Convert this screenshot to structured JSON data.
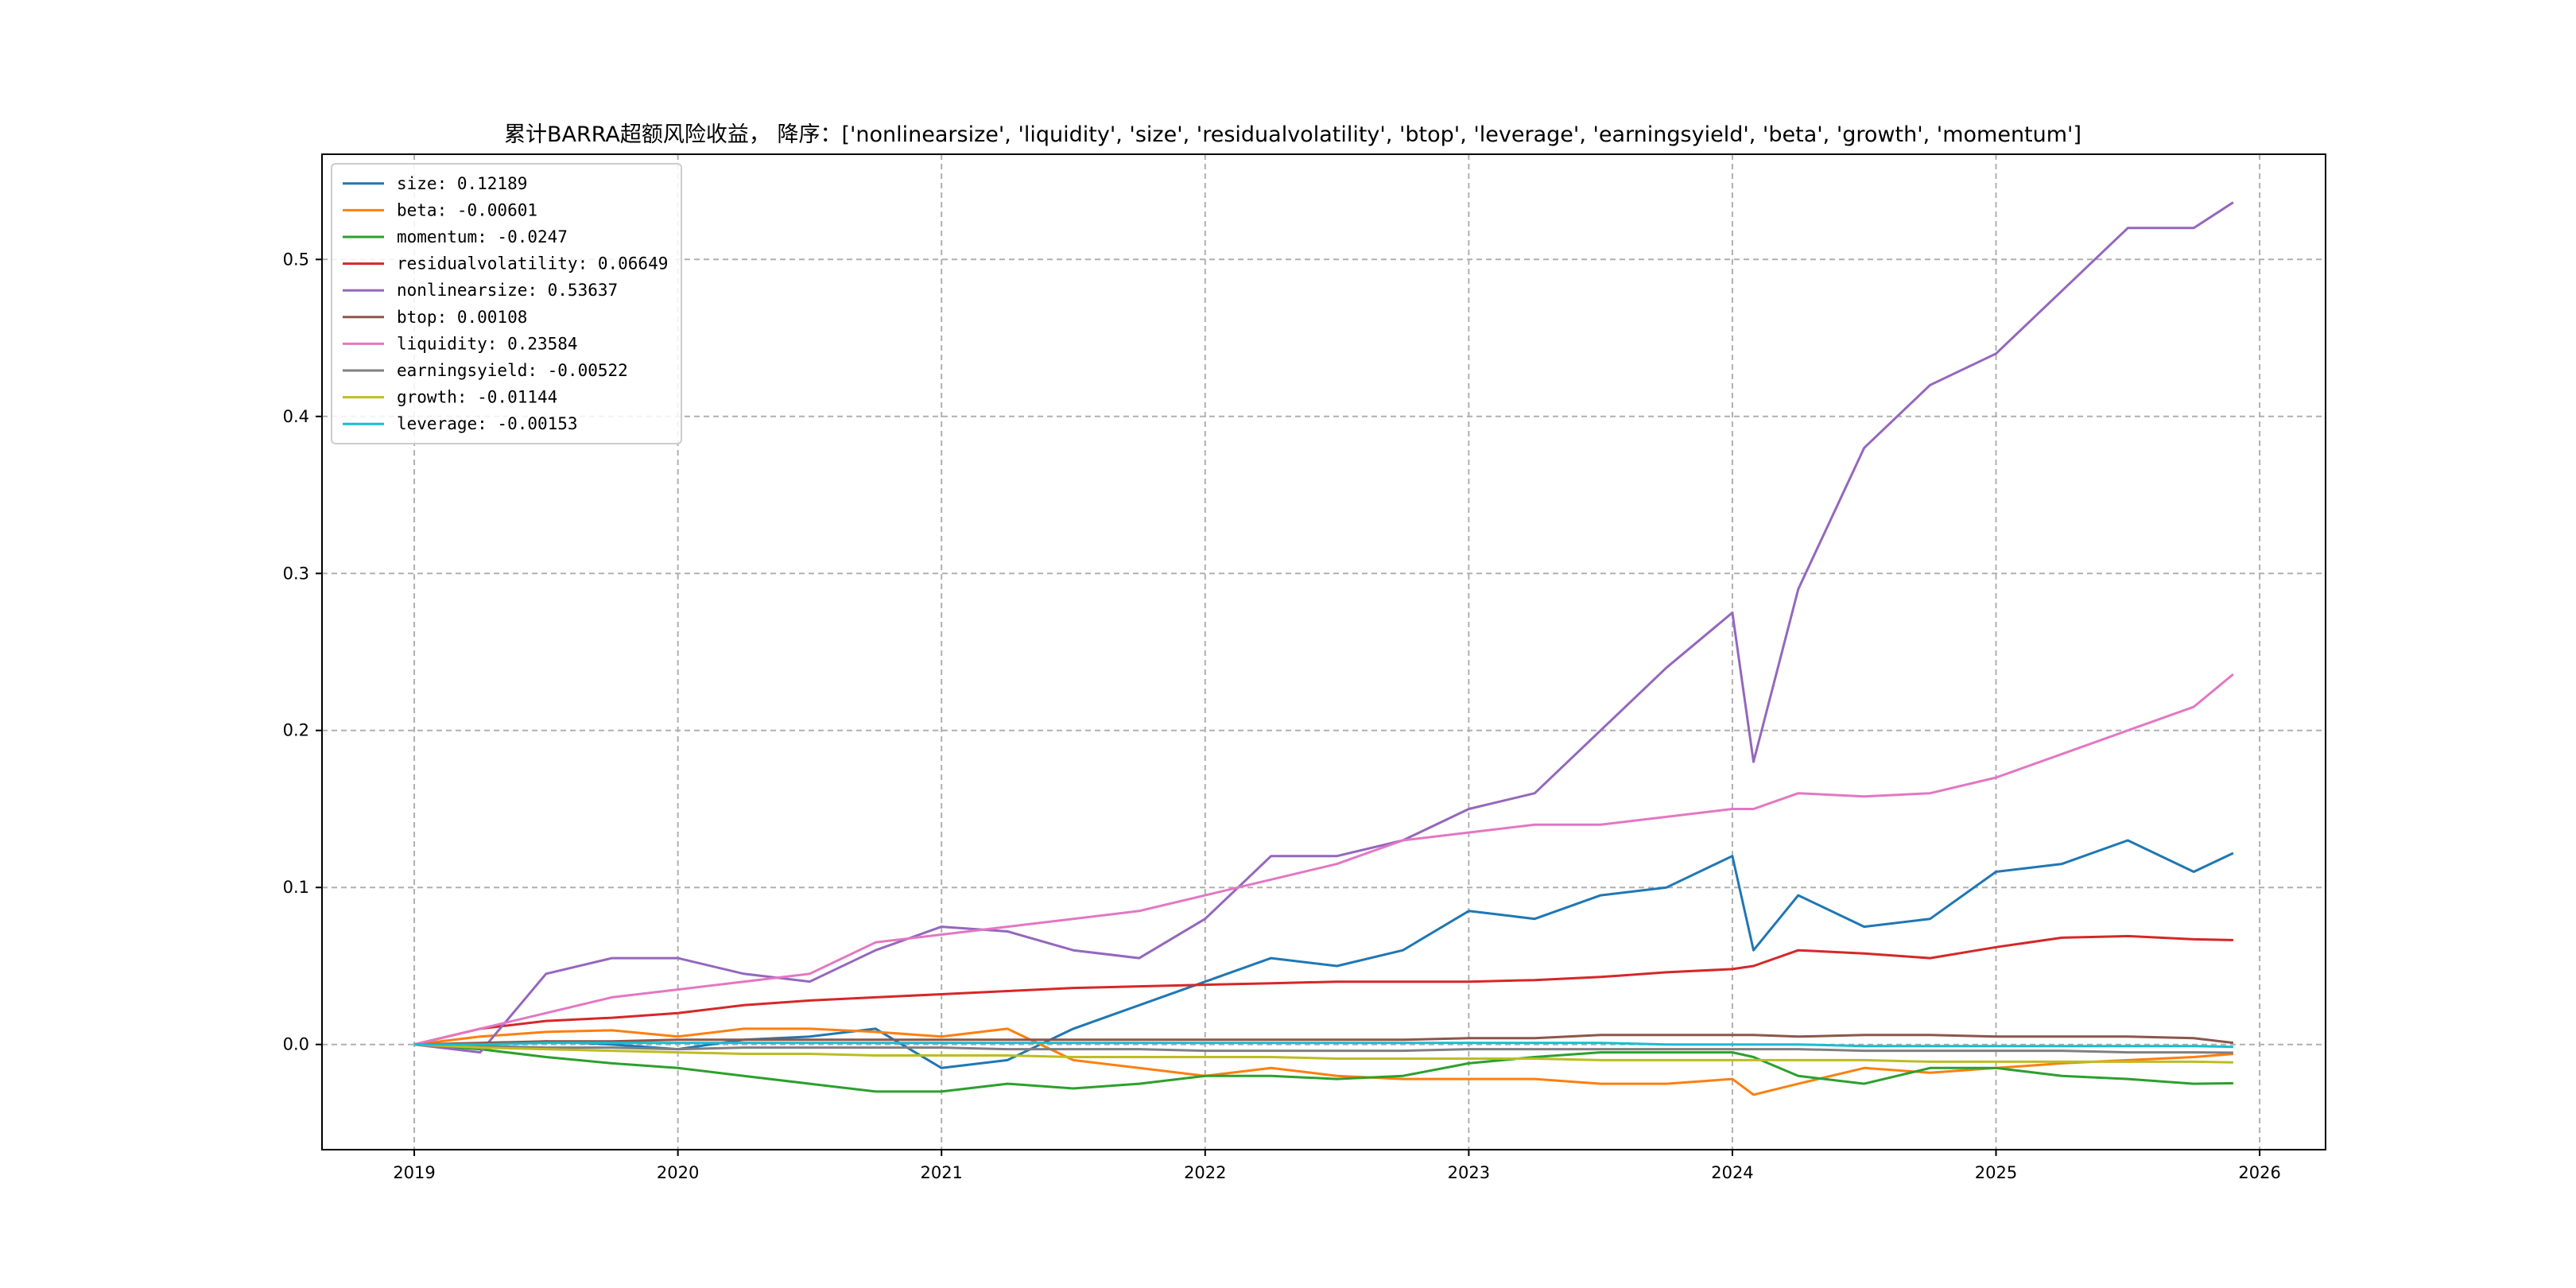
{
  "chart_data": {
    "type": "line",
    "title": "累计BARRA超额风险收益， 降序：['nonlinearsize', 'liquidity', 'size', 'residualvolatility', 'btop', 'leverage', 'earningsyield', 'beta', 'growth', 'momentum']",
    "xlabel": "",
    "ylabel": "",
    "xlim": [
      2018.65,
      2026.25
    ],
    "ylim": [
      -0.067,
      0.567
    ],
    "x_ticks": [
      "2019",
      "2020",
      "2021",
      "2022",
      "2023",
      "2024",
      "2025",
      "2026"
    ],
    "y_ticks": [
      "0.0",
      "0.1",
      "0.2",
      "0.3",
      "0.4",
      "0.5"
    ],
    "grid": true,
    "legend_position": "top-left",
    "x": [
      2019.0,
      2019.25,
      2019.5,
      2019.75,
      2020.0,
      2020.25,
      2020.5,
      2020.75,
      2021.0,
      2021.25,
      2021.5,
      2021.75,
      2022.0,
      2022.25,
      2022.5,
      2022.75,
      2023.0,
      2023.25,
      2023.5,
      2023.75,
      2024.0,
      2024.08,
      2024.25,
      2024.5,
      2024.75,
      2025.0,
      2025.25,
      2025.5,
      2025.75,
      2025.9
    ],
    "series": [
      {
        "name": "size",
        "legend": "size: 0.12189",
        "color": "#1f77b4",
        "values": [
          0.0,
          0.0,
          0.002,
          0.0,
          -0.003,
          0.003,
          0.005,
          0.01,
          -0.015,
          -0.01,
          0.01,
          0.025,
          0.04,
          0.055,
          0.05,
          0.06,
          0.085,
          0.08,
          0.095,
          0.1,
          0.12,
          0.06,
          0.095,
          0.075,
          0.08,
          0.11,
          0.115,
          0.13,
          0.11,
          0.12189
        ]
      },
      {
        "name": "beta",
        "legend": "beta: -0.00601",
        "color": "#ff7f0e",
        "values": [
          0.0,
          0.005,
          0.008,
          0.009,
          0.005,
          0.01,
          0.01,
          0.008,
          0.005,
          0.01,
          -0.01,
          -0.015,
          -0.02,
          -0.015,
          -0.02,
          -0.022,
          -0.022,
          -0.022,
          -0.025,
          -0.025,
          -0.022,
          -0.032,
          -0.025,
          -0.015,
          -0.018,
          -0.015,
          -0.012,
          -0.01,
          -0.008,
          -0.00601
        ]
      },
      {
        "name": "momentum",
        "legend": "momentum: -0.0247",
        "color": "#2ca02c",
        "values": [
          0.0,
          -0.003,
          -0.008,
          -0.012,
          -0.015,
          -0.02,
          -0.025,
          -0.03,
          -0.03,
          -0.025,
          -0.028,
          -0.025,
          -0.02,
          -0.02,
          -0.022,
          -0.02,
          -0.012,
          -0.008,
          -0.005,
          -0.005,
          -0.005,
          -0.008,
          -0.02,
          -0.025,
          -0.015,
          -0.015,
          -0.02,
          -0.022,
          -0.025,
          -0.0247
        ]
      },
      {
        "name": "residualvolatility",
        "legend": "residualvolatility: 0.06649",
        "color": "#d62728",
        "values": [
          0.0,
          0.01,
          0.015,
          0.017,
          0.02,
          0.025,
          0.028,
          0.03,
          0.032,
          0.034,
          0.036,
          0.037,
          0.038,
          0.039,
          0.04,
          0.04,
          0.04,
          0.041,
          0.043,
          0.046,
          0.048,
          0.05,
          0.06,
          0.058,
          0.055,
          0.062,
          0.068,
          0.069,
          0.067,
          0.06649
        ]
      },
      {
        "name": "nonlinearsize",
        "legend": "nonlinearsize: 0.53637",
        "color": "#9467bd",
        "values": [
          0.0,
          -0.005,
          0.045,
          0.055,
          0.055,
          0.045,
          0.04,
          0.06,
          0.075,
          0.072,
          0.06,
          0.055,
          0.08,
          0.12,
          0.12,
          0.13,
          0.15,
          0.16,
          0.2,
          0.24,
          0.275,
          0.18,
          0.29,
          0.38,
          0.42,
          0.44,
          0.48,
          0.52,
          0.52,
          0.53637
        ]
      },
      {
        "name": "btop",
        "legend": "btop: 0.00108",
        "color": "#8c564b",
        "values": [
          0.0,
          0.001,
          0.002,
          0.002,
          0.003,
          0.003,
          0.003,
          0.003,
          0.003,
          0.003,
          0.003,
          0.003,
          0.003,
          0.003,
          0.003,
          0.003,
          0.004,
          0.004,
          0.006,
          0.006,
          0.006,
          0.006,
          0.005,
          0.006,
          0.006,
          0.005,
          0.005,
          0.005,
          0.004,
          0.00108
        ]
      },
      {
        "name": "liquidity",
        "legend": "liquidity: 0.23584",
        "color": "#e377c2",
        "values": [
          0.0,
          0.01,
          0.02,
          0.03,
          0.035,
          0.04,
          0.045,
          0.065,
          0.07,
          0.075,
          0.08,
          0.085,
          0.095,
          0.105,
          0.115,
          0.13,
          0.135,
          0.14,
          0.14,
          0.145,
          0.15,
          0.15,
          0.16,
          0.158,
          0.16,
          0.17,
          0.185,
          0.2,
          0.215,
          0.23584
        ]
      },
      {
        "name": "earningsyield",
        "legend": "earningsyield: -0.00522",
        "color": "#7f7f7f",
        "values": [
          0.0,
          -0.001,
          -0.002,
          -0.002,
          -0.003,
          -0.002,
          -0.002,
          -0.002,
          -0.002,
          -0.003,
          -0.003,
          -0.003,
          -0.004,
          -0.004,
          -0.004,
          -0.004,
          -0.003,
          -0.003,
          -0.003,
          -0.003,
          -0.003,
          -0.003,
          -0.003,
          -0.004,
          -0.004,
          -0.004,
          -0.004,
          -0.005,
          -0.005,
          -0.00522
        ]
      },
      {
        "name": "growth",
        "legend": "growth: -0.01144",
        "color": "#bcbd22",
        "values": [
          0.0,
          -0.002,
          -0.003,
          -0.004,
          -0.005,
          -0.006,
          -0.006,
          -0.007,
          -0.007,
          -0.007,
          -0.008,
          -0.008,
          -0.008,
          -0.008,
          -0.009,
          -0.009,
          -0.009,
          -0.009,
          -0.01,
          -0.01,
          -0.01,
          -0.01,
          -0.01,
          -0.01,
          -0.011,
          -0.011,
          -0.011,
          -0.011,
          -0.011,
          -0.01144
        ]
      },
      {
        "name": "leverage",
        "legend": "leverage: -0.00153",
        "color": "#17becf",
        "values": [
          0.0,
          0.0,
          0.001,
          0.001,
          0.001,
          0.001,
          0.001,
          0.001,
          0.001,
          0.001,
          0.001,
          0.001,
          0.001,
          0.001,
          0.001,
          0.001,
          0.001,
          0.001,
          0.001,
          0.0,
          0.0,
          0.0,
          0.0,
          -0.001,
          -0.001,
          -0.001,
          -0.001,
          -0.001,
          -0.001,
          -0.00153
        ]
      }
    ]
  }
}
